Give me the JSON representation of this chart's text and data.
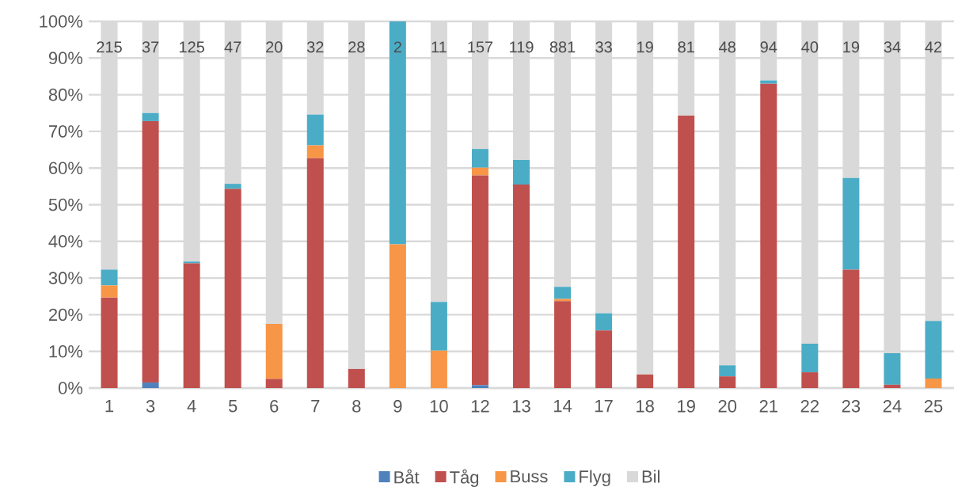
{
  "chart_data": {
    "type": "bar",
    "stacked": true,
    "categories": [
      "1",
      "3",
      "4",
      "5",
      "6",
      "7",
      "8",
      "9",
      "10",
      "12",
      "13",
      "14",
      "17",
      "18",
      "19",
      "20",
      "21",
      "22",
      "23",
      "24",
      "25"
    ],
    "series": [
      {
        "name": "Båt",
        "color": "#4f81bd",
        "values": [
          0,
          1.5,
          0,
          0,
          0,
          0,
          0,
          0,
          0,
          0.8,
          0,
          0,
          0,
          0,
          0,
          0,
          0,
          0,
          0,
          0,
          0
        ]
      },
      {
        "name": "Tåg",
        "color": "#c0504d",
        "values": [
          24.7,
          71.3,
          34,
          54.3,
          2.5,
          62.7,
          5.2,
          0,
          0,
          57.2,
          55.5,
          23.7,
          15.7,
          3.7,
          74.3,
          3.2,
          83,
          4.3,
          32.3,
          0.9,
          0
        ]
      },
      {
        "name": "Buss",
        "color": "#f79646",
        "values": [
          3.3,
          0,
          0,
          0,
          15,
          3.5,
          0,
          39.2,
          10.2,
          2.1,
          0,
          0.6,
          0,
          0,
          0,
          0,
          0,
          0,
          0,
          0,
          2.6
        ]
      },
      {
        "name": "Flyg",
        "color": "#4bacc6",
        "values": [
          4.3,
          2.2,
          0.5,
          1.4,
          0,
          8.4,
          0,
          60.8,
          13.3,
          5.1,
          6.7,
          3.3,
          4.7,
          0,
          0,
          3,
          0.9,
          7.8,
          25,
          8.6,
          15.7
        ]
      },
      {
        "name": "Bil",
        "color": "#d9d9d9",
        "values": [
          67.7,
          25,
          65.5,
          44.3,
          82.5,
          25.4,
          94.8,
          0,
          76.5,
          34.8,
          37.8,
          72.4,
          79.6,
          96.3,
          25.7,
          93.8,
          16.1,
          87.9,
          42.7,
          90.5,
          81.7
        ]
      }
    ],
    "ylim": [
      0,
      100
    ],
    "yticks": [
      {
        "value": 0,
        "label": "0%"
      },
      {
        "value": 10,
        "label": "10%"
      },
      {
        "value": 20,
        "label": "20%"
      },
      {
        "value": 30,
        "label": "30%"
      },
      {
        "value": 40,
        "label": "40%"
      },
      {
        "value": 50,
        "label": "50%"
      },
      {
        "value": 60,
        "label": "60%"
      },
      {
        "value": 70,
        "label": "70%"
      },
      {
        "value": 80,
        "label": "80%"
      },
      {
        "value": 90,
        "label": "90%"
      },
      {
        "value": 100,
        "label": "100%"
      }
    ],
    "grid": "y",
    "legend": "bottom",
    "annotations": [
      "215",
      "37",
      "125",
      "47",
      "20",
      "32",
      "28",
      "2",
      "11",
      "157",
      "119",
      "881",
      "33",
      "19",
      "81",
      "48",
      "94",
      "40",
      "19",
      "34",
      "42"
    ]
  }
}
